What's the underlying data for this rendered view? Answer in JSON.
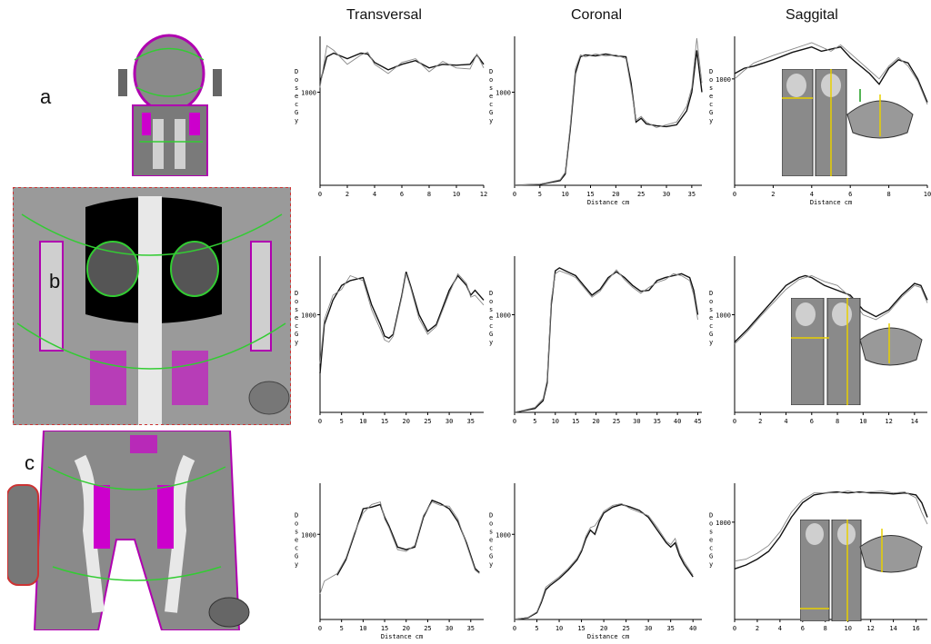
{
  "columns": [
    "Transversal",
    "Coronal",
    "Saggital"
  ],
  "panels": [
    "a",
    "b",
    "c"
  ],
  "colors": {
    "measured": "#111111",
    "calculated": "#888888",
    "axis": "#000000"
  },
  "chart_data": [
    {
      "type": "line",
      "row": 0,
      "col": 0,
      "ylabel": "Dose cGy",
      "xlabel": "",
      "xlim": [
        0,
        12
      ],
      "ylim": [
        0,
        1600
      ],
      "xticks": [
        0,
        2,
        4,
        6,
        8,
        10,
        12
      ],
      "xtick_labels": [
        "0",
        "2",
        "4",
        "6",
        "8",
        "10",
        "12"
      ],
      "yticks": [
        1000
      ],
      "ytick_labels": [
        "1000"
      ],
      "series": [
        {
          "x": [
            0,
            0.5,
            1,
            2,
            3,
            3.5,
            4,
            5,
            6,
            7,
            8,
            9,
            10,
            11,
            11.5,
            12
          ],
          "y": [
            1100,
            1380,
            1420,
            1360,
            1420,
            1410,
            1320,
            1240,
            1300,
            1340,
            1260,
            1300,
            1290,
            1300,
            1400,
            1300
          ]
        },
        {
          "x": [
            0,
            0.5,
            1,
            2,
            3,
            3.5,
            4,
            5,
            6,
            7,
            8,
            9,
            10,
            11,
            11.5,
            12
          ],
          "y": [
            1050,
            1500,
            1450,
            1300,
            1400,
            1430,
            1300,
            1200,
            1320,
            1360,
            1220,
            1330,
            1260,
            1250,
            1410,
            1260
          ]
        }
      ]
    },
    {
      "type": "line",
      "row": 0,
      "col": 1,
      "ylabel": "Dose cGy",
      "xlabel": "Distance cm",
      "xlim": [
        0,
        37
      ],
      "ylim": [
        0,
        1600
      ],
      "xticks": [
        0,
        5,
        10,
        15,
        20,
        25,
        30,
        35
      ],
      "xtick_labels": [
        "0",
        "5",
        "10",
        "15",
        "20",
        "25",
        "30",
        "35"
      ],
      "yticks": [
        1000
      ],
      "ytick_labels": [
        "1000"
      ],
      "series": [
        {
          "x": [
            0,
            5,
            9,
            10,
            11,
            12,
            13,
            14,
            16,
            18,
            20,
            22,
            23,
            24,
            25,
            26,
            28,
            30,
            32,
            34,
            35,
            36,
            37
          ],
          "y": [
            0,
            10,
            50,
            120,
            600,
            1200,
            1380,
            1400,
            1390,
            1410,
            1390,
            1380,
            1100,
            680,
            720,
            660,
            640,
            630,
            650,
            800,
            1000,
            1450,
            1000
          ]
        },
        {
          "x": [
            0,
            5,
            9,
            10,
            11,
            12,
            13,
            14,
            16,
            18,
            20,
            22,
            23,
            24,
            25,
            26,
            28,
            30,
            32,
            34,
            35,
            36,
            37
          ],
          "y": [
            0,
            12,
            60,
            140,
            640,
            1250,
            1400,
            1380,
            1410,
            1390,
            1400,
            1360,
            1050,
            700,
            740,
            680,
            620,
            650,
            680,
            850,
            1050,
            1580,
            1100
          ]
        }
      ]
    },
    {
      "type": "line",
      "row": 0,
      "col": 2,
      "ylabel": "Dose cGy",
      "xlabel": "Distance cm",
      "xlim": [
        0,
        10
      ],
      "ylim": [
        0,
        1400
      ],
      "xticks": [
        0,
        2,
        4,
        6,
        8,
        10
      ],
      "xtick_labels": [
        "0",
        "2",
        "4",
        "6",
        "8",
        "10"
      ],
      "yticks": [
        1000
      ],
      "ytick_labels": [
        "1000"
      ],
      "series": [
        {
          "x": [
            0,
            0.5,
            1,
            2,
            3,
            4,
            4.5,
            5,
            5.5,
            6,
            7,
            7.5,
            8,
            8.5,
            9,
            9.5,
            10
          ],
          "y": [
            1050,
            1100,
            1120,
            1180,
            1250,
            1300,
            1260,
            1280,
            1300,
            1200,
            1050,
            950,
            1100,
            1180,
            1150,
            1000,
            780
          ]
        },
        {
          "x": [
            0,
            0.5,
            1,
            2,
            3,
            4,
            4.5,
            5,
            5.5,
            6,
            7,
            7.5,
            8,
            8.5,
            9,
            9.5,
            10
          ],
          "y": [
            1000,
            1080,
            1150,
            1220,
            1280,
            1340,
            1300,
            1260,
            1320,
            1240,
            1080,
            1000,
            1120,
            1200,
            1120,
            980,
            760
          ]
        }
      ]
    },
    {
      "type": "line",
      "row": 1,
      "col": 0,
      "ylabel": "Dose cGy",
      "xlabel": "",
      "xlim": [
        0,
        38
      ],
      "ylim": [
        0,
        1600
      ],
      "xticks": [
        0,
        5,
        10,
        15,
        20,
        25,
        30,
        35
      ],
      "xtick_labels": [
        "0",
        "5",
        "10",
        "15",
        "20",
        "25",
        "30",
        "35"
      ],
      "yticks": [
        1000
      ],
      "ytick_labels": [
        "1000"
      ],
      "series": [
        {
          "x": [
            0,
            1,
            3,
            5,
            7,
            10,
            12,
            14,
            15,
            16,
            17,
            19,
            20,
            21,
            23,
            25,
            27,
            30,
            32,
            34,
            35,
            36,
            38
          ],
          "y": [
            400,
            900,
            1150,
            1300,
            1350,
            1380,
            1100,
            900,
            780,
            760,
            800,
            1200,
            1440,
            1300,
            1000,
            830,
            900,
            1250,
            1400,
            1300,
            1200,
            1250,
            1150
          ]
        },
        {
          "x": [
            0,
            1,
            3,
            5,
            7,
            10,
            12,
            14,
            15,
            16,
            17,
            19,
            20,
            21,
            23,
            25,
            27,
            30,
            32,
            34,
            35,
            36,
            38
          ],
          "y": [
            500,
            950,
            1200,
            1260,
            1400,
            1350,
            1050,
            850,
            740,
            720,
            780,
            1180,
            1420,
            1280,
            960,
            800,
            880,
            1220,
            1420,
            1320,
            1180,
            1200,
            1100
          ]
        }
      ]
    },
    {
      "type": "line",
      "row": 1,
      "col": 1,
      "ylabel": "Dose cGy",
      "xlabel": "",
      "xlim": [
        0,
        46
      ],
      "ylim": [
        0,
        1600
      ],
      "xticks": [
        0,
        5,
        10,
        15,
        20,
        25,
        30,
        35,
        40,
        45
      ],
      "xtick_labels": [
        "0",
        "5",
        "10",
        "15",
        "20",
        "25",
        "30",
        "35",
        "40",
        "45"
      ],
      "yticks": [
        1000
      ],
      "ytick_labels": [
        "1000"
      ],
      "series": [
        {
          "x": [
            0,
            5,
            7,
            8,
            9,
            10,
            11,
            13,
            15,
            17,
            19,
            21,
            23,
            25,
            27,
            29,
            31,
            33,
            35,
            37,
            39,
            41,
            43,
            44,
            45
          ],
          "y": [
            0,
            40,
            120,
            300,
            1100,
            1450,
            1480,
            1440,
            1400,
            1300,
            1200,
            1260,
            1380,
            1440,
            1380,
            1300,
            1240,
            1250,
            1350,
            1380,
            1400,
            1420,
            1380,
            1250,
            1000
          ]
        },
        {
          "x": [
            0,
            5,
            7,
            8,
            9,
            10,
            11,
            13,
            15,
            17,
            19,
            21,
            23,
            25,
            27,
            29,
            31,
            33,
            35,
            37,
            39,
            41,
            43,
            44,
            45
          ],
          "y": [
            0,
            50,
            140,
            330,
            1150,
            1420,
            1450,
            1420,
            1380,
            1280,
            1180,
            1240,
            1360,
            1460,
            1360,
            1280,
            1220,
            1280,
            1330,
            1360,
            1420,
            1400,
            1350,
            1200,
            950
          ]
        }
      ]
    },
    {
      "type": "line",
      "row": 1,
      "col": 2,
      "ylabel": "Dose cGy",
      "xlabel": "",
      "xlim": [
        0,
        15
      ],
      "ylim": [
        0,
        1600
      ],
      "xticks": [
        0,
        2,
        4,
        6,
        8,
        10,
        12,
        14
      ],
      "xtick_labels": [
        "0",
        "2",
        "4",
        "6",
        "8",
        "10",
        "12",
        "14"
      ],
      "yticks": [
        1000
      ],
      "ytick_labels": [
        "1000"
      ],
      "series": [
        {
          "x": [
            0,
            1,
            2,
            3,
            4,
            5,
            5.5,
            6,
            7,
            8,
            9,
            10,
            11,
            12,
            13,
            14,
            14.5,
            15
          ],
          "y": [
            720,
            850,
            1000,
            1150,
            1300,
            1380,
            1400,
            1380,
            1300,
            1250,
            1200,
            1050,
            980,
            1050,
            1200,
            1320,
            1300,
            1150
          ]
        },
        {
          "x": [
            0,
            1,
            2,
            3,
            4,
            5,
            5.5,
            6,
            7,
            8,
            9,
            10,
            11,
            12,
            13,
            14,
            14.5,
            15
          ],
          "y": [
            700,
            830,
            980,
            1120,
            1260,
            1360,
            1380,
            1400,
            1340,
            1300,
            1180,
            1000,
            950,
            1030,
            1180,
            1300,
            1280,
            1120
          ]
        }
      ]
    },
    {
      "type": "line",
      "row": 2,
      "col": 0,
      "ylabel": "Dose cGy",
      "xlabel": "Distance cm",
      "xlim": [
        0,
        38
      ],
      "ylim": [
        0,
        1600
      ],
      "xticks": [
        0,
        5,
        10,
        15,
        20,
        25,
        30,
        35
      ],
      "xtick_labels": [
        "0",
        "5",
        "10",
        "15",
        "20",
        "25",
        "30",
        "35"
      ],
      "yticks": [
        1000
      ],
      "ytick_labels": [
        "1000"
      ],
      "series": [
        {
          "x": [
            4,
            6,
            8,
            10,
            12,
            14,
            15,
            16,
            18,
            20,
            22,
            24,
            26,
            28,
            30,
            32,
            34,
            36,
            37
          ],
          "y": [
            520,
            700,
            1000,
            1300,
            1320,
            1350,
            1200,
            1100,
            850,
            820,
            850,
            1200,
            1400,
            1360,
            1300,
            1150,
            900,
            600,
            550
          ]
        },
        {
          "x": [
            0,
            1,
            4,
            6,
            8,
            10,
            12,
            14,
            15,
            16,
            18,
            20,
            22,
            24,
            26,
            28,
            30,
            32,
            34,
            36,
            37
          ],
          "y": [
            300,
            450,
            540,
            720,
            1020,
            1250,
            1350,
            1380,
            1180,
            1080,
            820,
            800,
            870,
            1220,
            1380,
            1340,
            1330,
            1180,
            880,
            580,
            540
          ]
        }
      ]
    },
    {
      "type": "line",
      "row": 2,
      "col": 1,
      "ylabel": "Dose cGy",
      "xlabel": "Distance cm",
      "xlim": [
        0,
        42
      ],
      "ylim": [
        0,
        1600
      ],
      "xticks": [
        0,
        5,
        10,
        15,
        20,
        25,
        30,
        35,
        40
      ],
      "xtick_labels": [
        "0",
        "5",
        "10",
        "15",
        "20",
        "25",
        "30",
        "35",
        "40"
      ],
      "yticks": [
        1000
      ],
      "ytick_labels": [
        "1000"
      ],
      "series": [
        {
          "x": [
            0,
            3,
            5,
            6,
            7,
            8,
            10,
            12,
            14,
            15,
            16,
            17,
            18,
            19,
            20,
            22,
            24,
            26,
            28,
            30,
            32,
            34,
            35,
            36,
            37,
            38,
            40
          ],
          "y": [
            0,
            20,
            80,
            200,
            350,
            400,
            480,
            580,
            700,
            800,
            950,
            1050,
            1000,
            1150,
            1250,
            1320,
            1350,
            1320,
            1280,
            1200,
            1050,
            900,
            850,
            900,
            750,
            650,
            500
          ]
        },
        {
          "x": [
            0,
            3,
            5,
            6,
            7,
            8,
            10,
            12,
            14,
            15,
            16,
            17,
            18,
            19,
            20,
            22,
            24,
            26,
            28,
            30,
            32,
            34,
            35,
            36,
            37,
            38,
            40
          ],
          "y": [
            0,
            25,
            90,
            220,
            380,
            420,
            500,
            600,
            720,
            820,
            980,
            1080,
            1100,
            1180,
            1270,
            1340,
            1360,
            1300,
            1260,
            1220,
            1080,
            920,
            880,
            950,
            780,
            680,
            520
          ]
        }
      ]
    },
    {
      "type": "line",
      "row": 2,
      "col": 2,
      "ylabel": "Dose cGy",
      "xlabel": "",
      "xlim": [
        0,
        17
      ],
      "ylim": [
        0,
        1400
      ],
      "xticks": [
        0,
        2,
        4,
        6,
        8,
        10,
        12,
        14,
        16
      ],
      "xtick_labels": [
        "0",
        "2",
        "4",
        "6",
        "8",
        "10",
        "12",
        "14",
        "16"
      ],
      "yticks": [
        1000
      ],
      "ytick_labels": [
        "1000"
      ],
      "series": [
        {
          "x": [
            0,
            1,
            2,
            3,
            4,
            5,
            6,
            7,
            8,
            9,
            10,
            11,
            12,
            13,
            14,
            15,
            16,
            16.5,
            17
          ],
          "y": [
            520,
            560,
            620,
            700,
            850,
            1050,
            1200,
            1280,
            1300,
            1310,
            1300,
            1310,
            1300,
            1300,
            1290,
            1300,
            1280,
            1200,
            1050
          ]
        },
        {
          "x": [
            0,
            1,
            2,
            3,
            4,
            5,
            6,
            7,
            8,
            9,
            10,
            11,
            12,
            13,
            14,
            15,
            16,
            16.5,
            17
          ],
          "y": [
            600,
            620,
            680,
            760,
            900,
            1100,
            1230,
            1300,
            1300,
            1300,
            1320,
            1300,
            1310,
            1320,
            1300,
            1310,
            1250,
            1100,
            980
          ]
        }
      ]
    }
  ]
}
